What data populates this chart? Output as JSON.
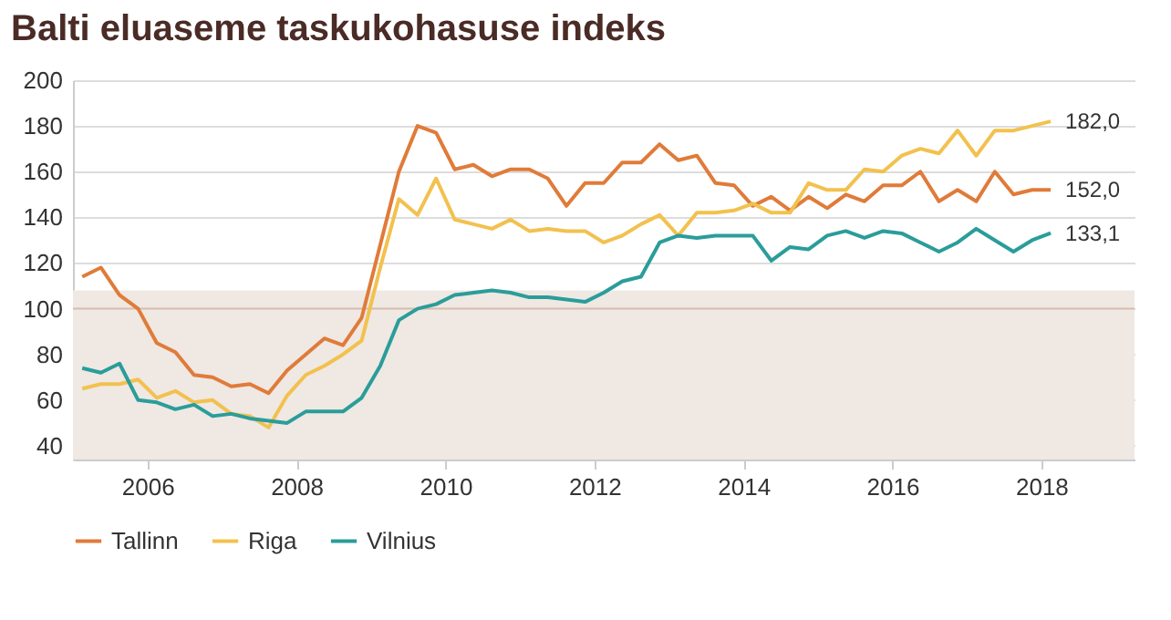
{
  "chart_data": {
    "type": "line",
    "title": "Balti eluaseme taskukohasuse indeks",
    "x": [
      2005.125,
      2005.375,
      2005.625,
      2005.875,
      2006.125,
      2006.375,
      2006.625,
      2006.875,
      2007.125,
      2007.375,
      2007.625,
      2007.875,
      2008.125,
      2008.375,
      2008.625,
      2008.875,
      2009.125,
      2009.375,
      2009.625,
      2009.875,
      2010.125,
      2010.375,
      2010.625,
      2010.875,
      2011.125,
      2011.375,
      2011.625,
      2011.875,
      2012.125,
      2012.375,
      2012.625,
      2012.875,
      2013.125,
      2013.375,
      2013.625,
      2013.875,
      2014.125,
      2014.375,
      2014.625,
      2014.875,
      2015.125,
      2015.375,
      2015.625,
      2015.875,
      2016.125,
      2016.375,
      2016.625,
      2016.875,
      2017.125,
      2017.375,
      2017.625,
      2017.875,
      2018.125
    ],
    "series": [
      {
        "name": "Tallinn",
        "color": "#e07b39",
        "values": [
          114,
          118,
          106,
          100,
          85,
          81,
          71,
          70,
          66,
          67,
          63,
          73,
          80,
          87,
          84,
          96,
          128,
          160,
          180,
          177,
          161,
          163,
          158,
          161,
          161,
          157,
          145,
          155,
          155,
          164,
          164,
          172,
          165,
          167,
          155,
          154,
          145,
          149,
          143,
          149,
          144,
          150,
          147,
          154,
          154,
          160,
          147,
          152,
          147,
          160,
          150,
          152,
          152.0
        ],
        "value_labels": [
          null,
          null,
          null,
          null,
          null,
          null,
          null,
          null,
          null,
          null,
          null,
          null,
          null,
          null,
          null,
          null,
          null,
          null,
          null,
          null,
          null,
          null,
          null,
          null,
          null,
          null,
          null,
          null,
          null,
          null,
          null,
          null,
          null,
          null,
          null,
          null,
          null,
          null,
          null,
          null,
          null,
          null,
          null,
          null,
          null,
          null,
          null,
          null,
          null,
          null,
          null,
          null,
          "152,0"
        ]
      },
      {
        "name": "Riga",
        "color": "#f2c14e",
        "values": [
          65,
          67,
          67,
          69,
          61,
          64,
          59,
          60,
          54,
          53,
          48,
          62,
          71,
          75,
          80,
          86,
          118,
          148,
          141,
          157,
          139,
          137,
          135,
          139,
          134,
          135,
          134,
          134,
          129,
          132,
          137,
          141,
          132,
          142,
          142,
          143,
          146,
          142,
          142,
          155,
          152,
          152,
          161,
          160,
          167,
          170,
          168,
          178,
          167,
          178,
          178,
          180,
          182.0
        ],
        "value_labels": [
          null,
          null,
          null,
          null,
          null,
          null,
          null,
          null,
          null,
          null,
          null,
          null,
          null,
          null,
          null,
          null,
          null,
          null,
          null,
          null,
          null,
          null,
          null,
          null,
          null,
          null,
          null,
          null,
          null,
          null,
          null,
          null,
          null,
          null,
          null,
          null,
          null,
          null,
          null,
          null,
          null,
          null,
          null,
          null,
          null,
          null,
          null,
          null,
          null,
          null,
          null,
          null,
          "182,0"
        ]
      },
      {
        "name": "Vilnius",
        "color": "#2a9d9a",
        "values": [
          74,
          72,
          76,
          60,
          59,
          56,
          58,
          53,
          54,
          52,
          51,
          50,
          55,
          55,
          55,
          61,
          75,
          95,
          100,
          102,
          106,
          107,
          108,
          107,
          105,
          105,
          104,
          103,
          107,
          112,
          114,
          129,
          132,
          131,
          132,
          132,
          132,
          121,
          127,
          126,
          132,
          134,
          131,
          134,
          133,
          129,
          125,
          129,
          135,
          130,
          125,
          130,
          133.1
        ],
        "value_labels": [
          null,
          null,
          null,
          null,
          null,
          null,
          null,
          null,
          null,
          null,
          null,
          null,
          null,
          null,
          null,
          null,
          null,
          null,
          null,
          null,
          null,
          null,
          null,
          null,
          null,
          null,
          null,
          null,
          null,
          null,
          null,
          null,
          null,
          null,
          null,
          null,
          null,
          null,
          null,
          null,
          null,
          null,
          null,
          null,
          null,
          null,
          null,
          null,
          null,
          null,
          null,
          null,
          "133,1"
        ]
      }
    ],
    "xlim": [
      2005,
      2019.25
    ],
    "xticks": [
      2006,
      2008,
      2010,
      2012,
      2014,
      2016,
      2018
    ],
    "ylim": [
      34,
      200
    ],
    "yticks": [
      40,
      60,
      80,
      100,
      120,
      140,
      160,
      180,
      200
    ],
    "grid": "y",
    "legend": "bottom",
    "bands": [
      {
        "axis": "y",
        "from": 34,
        "to": 108,
        "color": "#efe8e3"
      }
    ],
    "ref_lines": [
      {
        "axis": "y",
        "value": 100,
        "color": "#d6bcae"
      }
    ]
  }
}
